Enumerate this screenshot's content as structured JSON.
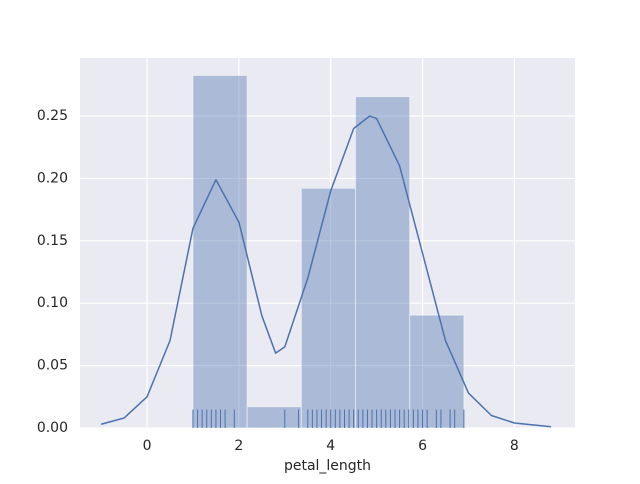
{
  "chart_data": {
    "type": "histogram",
    "xlabel": "petal_length",
    "bins": [
      1.0,
      2.18,
      3.36,
      4.54,
      5.72,
      6.9
    ],
    "values": [
      0.2825,
      0.017,
      0.1921,
      0.2655,
      0.0904
    ],
    "color": "#4c72b0",
    "kde": {
      "x": [
        -1.0,
        -0.5,
        0.0,
        0.5,
        1.0,
        1.5,
        2.0,
        2.5,
        2.8,
        3.0,
        3.5,
        4.0,
        4.5,
        4.85,
        5.0,
        5.5,
        6.0,
        6.5,
        7.0,
        7.5,
        8.0,
        8.8
      ],
      "y": [
        0.003,
        0.008,
        0.025,
        0.07,
        0.16,
        0.199,
        0.165,
        0.09,
        0.06,
        0.065,
        0.12,
        0.19,
        0.24,
        0.25,
        0.248,
        0.21,
        0.14,
        0.07,
        0.028,
        0.01,
        0.004,
        0.001
      ]
    },
    "rug": [
      1.0,
      1.1,
      1.2,
      1.3,
      1.4,
      1.5,
      1.6,
      1.7,
      1.9,
      3.0,
      3.3,
      3.5,
      3.6,
      3.7,
      3.8,
      3.9,
      4.0,
      4.1,
      4.2,
      4.3,
      4.4,
      4.5,
      4.6,
      4.7,
      4.8,
      4.9,
      5.0,
      5.1,
      5.2,
      5.3,
      5.4,
      5.5,
      5.6,
      5.7,
      5.8,
      5.9,
      6.0,
      6.1,
      6.3,
      6.4,
      6.6,
      6.7,
      6.9
    ],
    "xlim": [
      -1.46,
      9.32
    ],
    "ylim": [
      0,
      0.2965
    ],
    "xticks": [
      0,
      2,
      4,
      6,
      8
    ],
    "yticks": [
      {
        "value": 0,
        "label": "0.00"
      },
      {
        "value": 0.05,
        "label": "0.05"
      },
      {
        "value": 0.1,
        "label": "0.10"
      },
      {
        "value": 0.15,
        "label": "0.15"
      },
      {
        "value": 0.2,
        "label": "0.20"
      },
      {
        "value": 0.25,
        "label": "0.25"
      }
    ],
    "grid": true
  }
}
